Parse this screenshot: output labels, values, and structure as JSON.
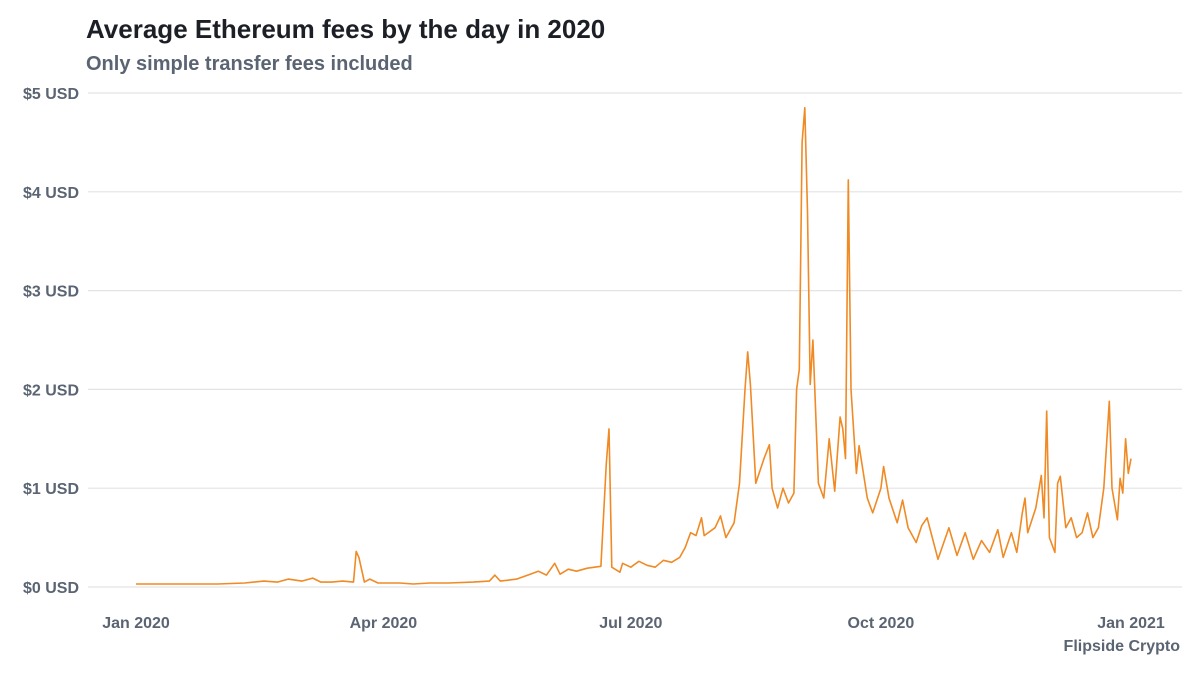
{
  "title": "Average Ethereum fees by the day in 2020",
  "subtitle": "Only simple transfer fees included",
  "caption": "Flipside Crypto",
  "colors": {
    "line": "#F08A24",
    "grid": "#E4E4E4",
    "text": "#5A6472",
    "title": "#1C1F26"
  },
  "chart_data": {
    "type": "line",
    "title": "Average Ethereum fees by the day in 2020",
    "subtitle": "Only simple transfer fees included",
    "xlabel": "",
    "ylabel": "",
    "x_range": [
      "2020-01-01",
      "2021-01-01"
    ],
    "ylim": [
      0,
      5
    ],
    "grid": true,
    "legend": "none",
    "y_ticks": [
      {
        "value": 0,
        "label": "$0 USD"
      },
      {
        "value": 1,
        "label": "$1 USD"
      },
      {
        "value": 2,
        "label": "$2 USD"
      },
      {
        "value": 3,
        "label": "$3 USD"
      },
      {
        "value": 4,
        "label": "$4 USD"
      },
      {
        "value": 5,
        "label": "$5 USD"
      }
    ],
    "x_ticks": [
      {
        "value": "2020-01-01",
        "label": "Jan 2020"
      },
      {
        "value": "2020-04-01",
        "label": "Apr 2020"
      },
      {
        "value": "2020-07-01",
        "label": "Jul 2020"
      },
      {
        "value": "2020-10-01",
        "label": "Oct 2020"
      },
      {
        "value": "2021-01-01",
        "label": "Jan 2021"
      }
    ],
    "series": [
      {
        "name": "",
        "color": "#F08A24",
        "points": [
          [
            "2020-01-01",
            0.03
          ],
          [
            "2020-01-10",
            0.03
          ],
          [
            "2020-01-20",
            0.03
          ],
          [
            "2020-01-31",
            0.03
          ],
          [
            "2020-02-10",
            0.04
          ],
          [
            "2020-02-17",
            0.06
          ],
          [
            "2020-02-22",
            0.05
          ],
          [
            "2020-02-26",
            0.08
          ],
          [
            "2020-03-02",
            0.06
          ],
          [
            "2020-03-06",
            0.09
          ],
          [
            "2020-03-09",
            0.05
          ],
          [
            "2020-03-13",
            0.05
          ],
          [
            "2020-03-17",
            0.06
          ],
          [
            "2020-03-21",
            0.05
          ],
          [
            "2020-03-22",
            0.36
          ],
          [
            "2020-03-23",
            0.3
          ],
          [
            "2020-03-25",
            0.05
          ],
          [
            "2020-03-27",
            0.08
          ],
          [
            "2020-03-30",
            0.04
          ],
          [
            "2020-04-07",
            0.04
          ],
          [
            "2020-04-12",
            0.03
          ],
          [
            "2020-04-18",
            0.04
          ],
          [
            "2020-04-25",
            0.04
          ],
          [
            "2020-05-04",
            0.05
          ],
          [
            "2020-05-10",
            0.06
          ],
          [
            "2020-05-12",
            0.12
          ],
          [
            "2020-05-14",
            0.06
          ],
          [
            "2020-05-20",
            0.08
          ],
          [
            "2020-05-25",
            0.13
          ],
          [
            "2020-05-28",
            0.16
          ],
          [
            "2020-05-31",
            0.12
          ],
          [
            "2020-06-03",
            0.24
          ],
          [
            "2020-06-05",
            0.13
          ],
          [
            "2020-06-08",
            0.18
          ],
          [
            "2020-06-11",
            0.16
          ],
          [
            "2020-06-15",
            0.19
          ],
          [
            "2020-06-20",
            0.21
          ],
          [
            "2020-06-22",
            1.25
          ],
          [
            "2020-06-23",
            1.6
          ],
          [
            "2020-06-24",
            0.2
          ],
          [
            "2020-06-27",
            0.15
          ],
          [
            "2020-06-28",
            0.24
          ],
          [
            "2020-07-01",
            0.2
          ],
          [
            "2020-07-04",
            0.26
          ],
          [
            "2020-07-07",
            0.22
          ],
          [
            "2020-07-10",
            0.2
          ],
          [
            "2020-07-13",
            0.27
          ],
          [
            "2020-07-16",
            0.25
          ],
          [
            "2020-07-19",
            0.3
          ],
          [
            "2020-07-21",
            0.4
          ],
          [
            "2020-07-23",
            0.55
          ],
          [
            "2020-07-25",
            0.52
          ],
          [
            "2020-07-27",
            0.7
          ],
          [
            "2020-07-28",
            0.52
          ],
          [
            "2020-08-01",
            0.6
          ],
          [
            "2020-08-03",
            0.72
          ],
          [
            "2020-08-05",
            0.5
          ],
          [
            "2020-08-08",
            0.65
          ],
          [
            "2020-08-10",
            1.05
          ],
          [
            "2020-08-12",
            2.0
          ],
          [
            "2020-08-13",
            2.38
          ],
          [
            "2020-08-14",
            2.05
          ],
          [
            "2020-08-16",
            1.05
          ],
          [
            "2020-08-19",
            1.3
          ],
          [
            "2020-08-21",
            1.44
          ],
          [
            "2020-08-22",
            1.0
          ],
          [
            "2020-08-24",
            0.8
          ],
          [
            "2020-08-26",
            1.0
          ],
          [
            "2020-08-28",
            0.85
          ],
          [
            "2020-08-30",
            0.95
          ],
          [
            "2020-08-31",
            2.0
          ],
          [
            "2020-09-01",
            2.2
          ],
          [
            "2020-09-02",
            4.5
          ],
          [
            "2020-09-03",
            4.85
          ],
          [
            "2020-09-04",
            3.8
          ],
          [
            "2020-09-05",
            2.05
          ],
          [
            "2020-09-06",
            2.5
          ],
          [
            "2020-09-08",
            1.05
          ],
          [
            "2020-09-10",
            0.9
          ],
          [
            "2020-09-12",
            1.5
          ],
          [
            "2020-09-14",
            0.97
          ],
          [
            "2020-09-16",
            1.72
          ],
          [
            "2020-09-17",
            1.6
          ],
          [
            "2020-09-18",
            1.3
          ],
          [
            "2020-09-19",
            4.12
          ],
          [
            "2020-09-20",
            2.0
          ],
          [
            "2020-09-22",
            1.15
          ],
          [
            "2020-09-23",
            1.43
          ],
          [
            "2020-09-26",
            0.9
          ],
          [
            "2020-09-28",
            0.75
          ],
          [
            "2020-10-01",
            1.0
          ],
          [
            "2020-10-02",
            1.22
          ],
          [
            "2020-10-04",
            0.9
          ],
          [
            "2020-10-07",
            0.65
          ],
          [
            "2020-10-09",
            0.88
          ],
          [
            "2020-10-11",
            0.6
          ],
          [
            "2020-10-14",
            0.45
          ],
          [
            "2020-10-16",
            0.62
          ],
          [
            "2020-10-18",
            0.7
          ],
          [
            "2020-10-22",
            0.28
          ],
          [
            "2020-10-26",
            0.6
          ],
          [
            "2020-10-29",
            0.32
          ],
          [
            "2020-11-01",
            0.55
          ],
          [
            "2020-11-04",
            0.28
          ],
          [
            "2020-11-07",
            0.47
          ],
          [
            "2020-11-10",
            0.35
          ],
          [
            "2020-11-13",
            0.58
          ],
          [
            "2020-11-15",
            0.3
          ],
          [
            "2020-11-18",
            0.55
          ],
          [
            "2020-11-20",
            0.35
          ],
          [
            "2020-11-22",
            0.75
          ],
          [
            "2020-11-23",
            0.9
          ],
          [
            "2020-11-24",
            0.55
          ],
          [
            "2020-11-27",
            0.8
          ],
          [
            "2020-11-29",
            1.13
          ],
          [
            "2020-11-30",
            0.7
          ],
          [
            "2020-12-01",
            1.78
          ],
          [
            "2020-12-02",
            0.5
          ],
          [
            "2020-12-04",
            0.35
          ],
          [
            "2020-12-05",
            1.05
          ],
          [
            "2020-12-06",
            1.12
          ],
          [
            "2020-12-08",
            0.6
          ],
          [
            "2020-12-10",
            0.7
          ],
          [
            "2020-12-12",
            0.5
          ],
          [
            "2020-12-14",
            0.55
          ],
          [
            "2020-12-16",
            0.75
          ],
          [
            "2020-12-18",
            0.5
          ],
          [
            "2020-12-20",
            0.6
          ],
          [
            "2020-12-22",
            1.0
          ],
          [
            "2020-12-24",
            1.88
          ],
          [
            "2020-12-25",
            1.0
          ],
          [
            "2020-12-27",
            0.68
          ],
          [
            "2020-12-28",
            1.1
          ],
          [
            "2020-12-29",
            0.95
          ],
          [
            "2020-12-30",
            1.5
          ],
          [
            "2020-12-31",
            1.15
          ],
          [
            "2021-01-01",
            1.3
          ]
        ]
      }
    ]
  }
}
